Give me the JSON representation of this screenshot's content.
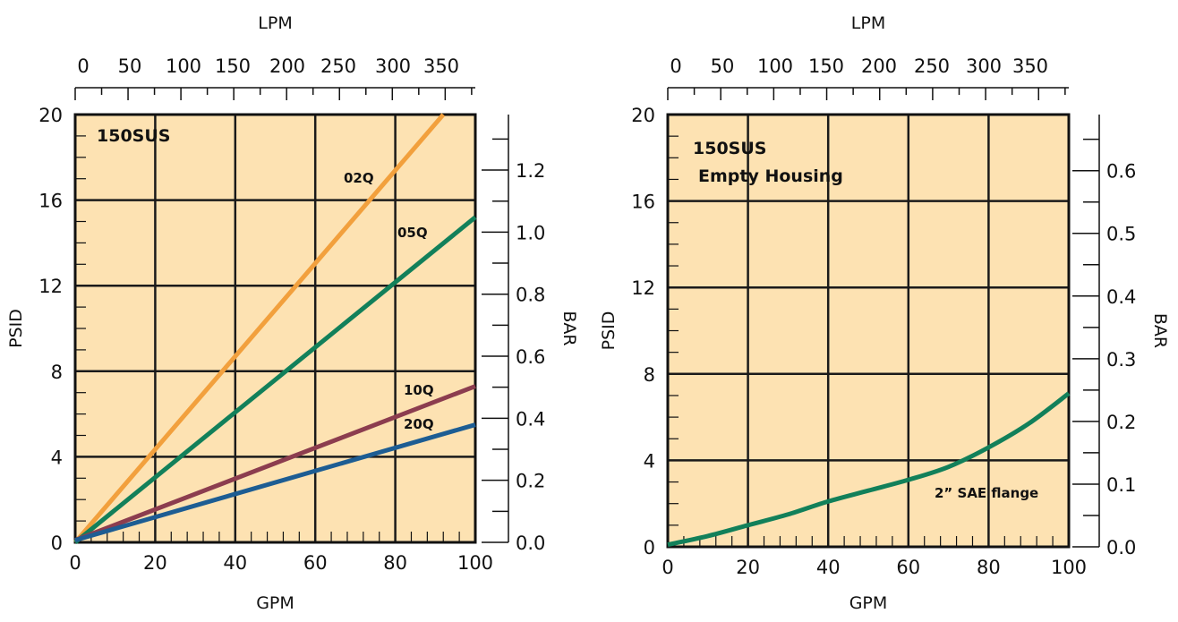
{
  "colors": {
    "plot_bg": "#fde2b2",
    "grid": "#1a1a1a",
    "02Q": "#f2a03d",
    "05Q": "#12805a",
    "10Q": "#8c3d4f",
    "20Q": "#1d5d93",
    "empty": "#12805a"
  },
  "chart_data": [
    {
      "type": "line",
      "title": "150SUS",
      "subtitle": "",
      "xlabel": "GPM",
      "ylabel": "PSID",
      "top_label": "LPM",
      "right_label": "BAR",
      "xlim": [
        0,
        100
      ],
      "ylim": [
        0,
        20
      ],
      "x_ticks": [
        "0",
        "20",
        "40",
        "60",
        "80",
        "100"
      ],
      "y_ticks": [
        "0",
        "4",
        "8",
        "12",
        "16",
        "20"
      ],
      "lpm_ticks": [
        "0",
        "50",
        "100",
        "150",
        "200",
        "250",
        "300",
        "350"
      ],
      "bar_ticks": [
        "0.0",
        "0.2",
        "0.4",
        "0.6",
        "0.8",
        "1.0",
        "1.2"
      ],
      "bar_max": 1.379,
      "grid": true,
      "series": [
        {
          "name": "02Q",
          "color": "#f2a03d",
          "x": [
            0,
            92
          ],
          "y": [
            0,
            20
          ]
        },
        {
          "name": "05Q",
          "color": "#12805a",
          "x": [
            0,
            100
          ],
          "y": [
            0,
            15.2
          ]
        },
        {
          "name": "10Q",
          "color": "#8c3d4f",
          "x": [
            0,
            100
          ],
          "y": [
            0.1,
            7.3
          ]
        },
        {
          "name": "20Q",
          "color": "#1d5d93",
          "x": [
            0,
            100
          ],
          "y": [
            0.1,
            5.5
          ]
        }
      ]
    },
    {
      "type": "line",
      "title": "150SUS",
      "subtitle": "Empty Housing",
      "xlabel": "GPM",
      "ylabel": "PSID",
      "top_label": "LPM",
      "right_label": "BAR",
      "xlim": [
        0,
        100
      ],
      "ylim": [
        0,
        20
      ],
      "x_ticks": [
        "0",
        "20",
        "40",
        "60",
        "80",
        "100"
      ],
      "y_ticks": [
        "0",
        "4",
        "8",
        "12",
        "16",
        "20"
      ],
      "lpm_ticks": [
        "0",
        "50",
        "100",
        "150",
        "200",
        "250",
        "300",
        "350"
      ],
      "bar_ticks": [
        "0.0",
        "0.1",
        "0.2",
        "0.3",
        "0.4",
        "0.5",
        "0.6"
      ],
      "bar_max": 0.6895,
      "grid": true,
      "series": [
        {
          "name": "2” SAE flange",
          "color": "#12805a",
          "x": [
            0,
            10,
            20,
            30,
            40,
            50,
            60,
            70,
            80,
            90,
            100
          ],
          "y": [
            0.1,
            0.5,
            1.0,
            1.5,
            2.1,
            2.6,
            3.1,
            3.7,
            4.6,
            5.7,
            7.1
          ]
        }
      ]
    }
  ]
}
